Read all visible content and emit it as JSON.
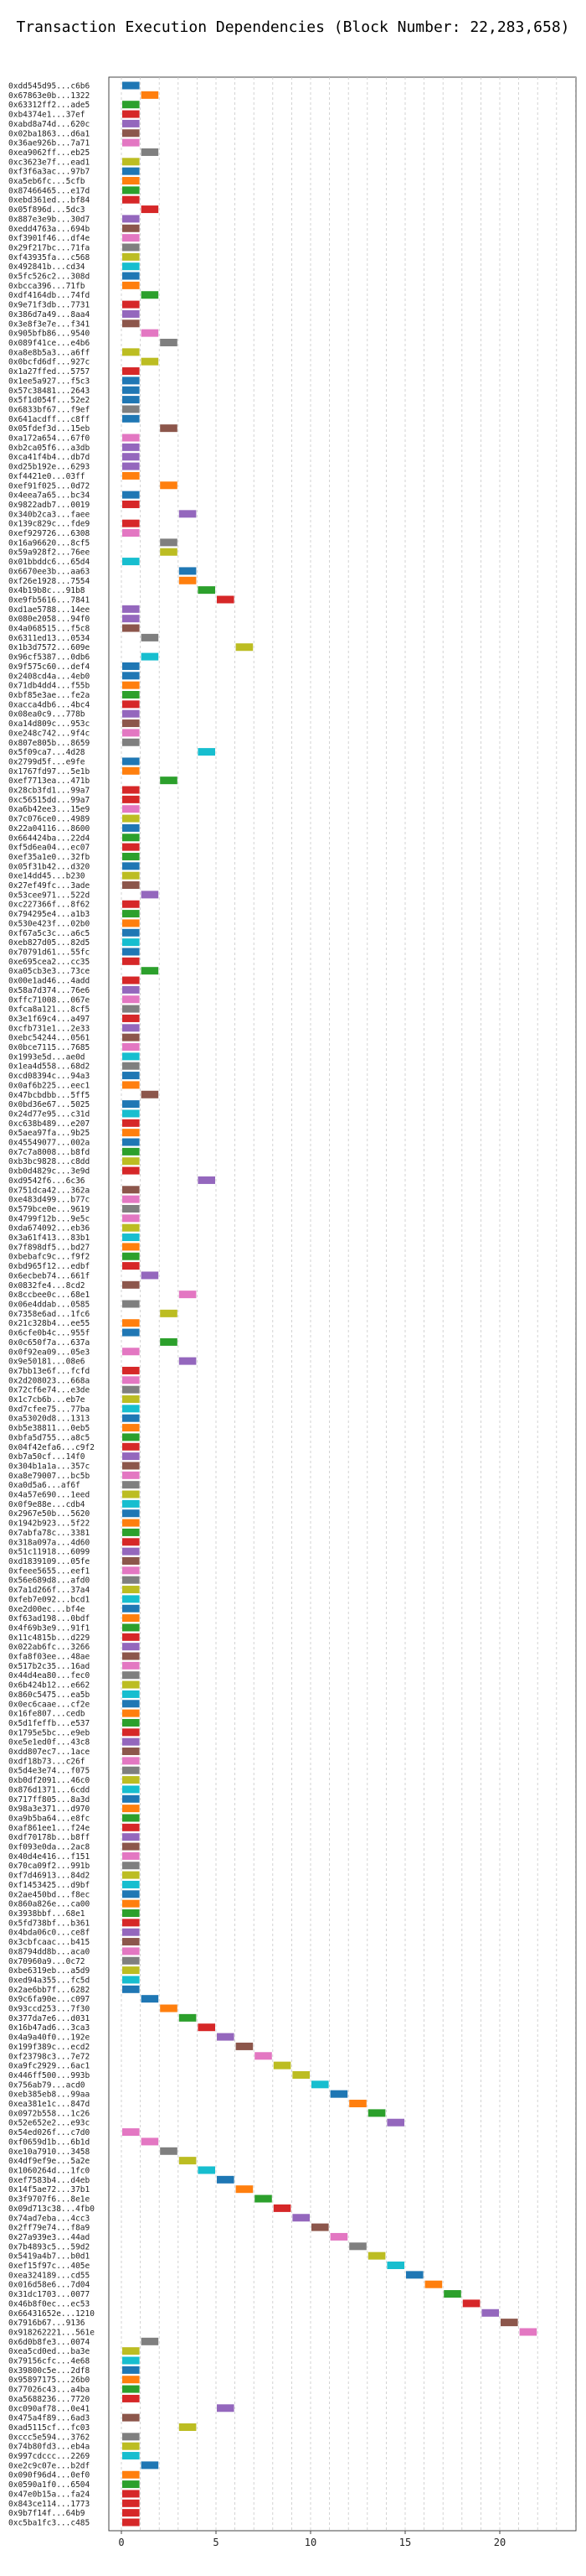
{
  "chart_data": {
    "type": "bar",
    "title": "Transaction Execution Dependencies (Block Number: 22,283,658)",
    "xlabel": "",
    "ylabel": "",
    "grid": true,
    "xlim": [
      0,
      23.5
    ],
    "xticks": [
      "0",
      "5",
      "10",
      "15",
      "20"
    ],
    "colors": [
      "#1f77b4",
      "#ff7f0e",
      "#2ca02c",
      "#d62728",
      "#9467bd",
      "#8c564b",
      "#e377c2",
      "#7f7f7f",
      "#bcbd22",
      "#17becf"
    ],
    "transactions": [
      "0xdd545d95...c6b6",
      "0x67863e0b...1322",
      "0x63312ff2...ade5",
      "0xb4374e1...37ef",
      "0xabd8a74d...620c",
      "0x02ba1863...d6a1",
      "0x36ae926b...7a71",
      "0xea9062ff...eb25",
      "0xc3623e7f...ead1",
      "0xf3f6a3ac...97b7",
      "0xa5eb6fc...5cfb",
      "0x87466465...e17d",
      "0xebd361ed...bf84",
      "0x05f896d...5dc3",
      "0x887e3e9b...30d7",
      "0xedd4763a...694b",
      "0xf3901f46...df4e",
      "0x29f217bc...71fa",
      "0xf43935fa...c568",
      "0x492841b...cd34",
      "0x5fc526c2...308d",
      "0xbcca396...71fb",
      "0xdf4164db...74fd",
      "0x9e71f3db...7731",
      "0x386d7a49...8aa4",
      "0x3e8f3e7e...f341",
      "0x905bfb86...9540",
      "0x089f41ce...e4b6",
      "0xa8e8b5a3...a6ff",
      "0x0bcfd6df...927c",
      "0x1a27ffed...5757",
      "0x1ee5a927...f5c3",
      "0x57c38481...2643",
      "0x5f1d054f...52e2",
      "0x6833bf67...f9ef",
      "0x641acdff...c8ff",
      "0x05fdef3d...15eb",
      "0xa172a654...67f0",
      "0xb2ca05f6...a3db",
      "0xca41f4b4...db7d",
      "0xd25b192e...6293",
      "0xf4421e0...03ff",
      "0xef91f025...0d72",
      "0x4eea7a65...bc34",
      "0x9822adb7...0019",
      "0x340b2ca3...faee",
      "0x139c829c...fde9",
      "0xef929726...6308",
      "0x16a96620...8cf5",
      "0x59a928f2...76ee",
      "0x01bbddc6...65d4",
      "0x6670ee3b...aa63",
      "0xf26e1928...7554",
      "0x4b19b8c...91b8",
      "0xe9fb5616...7841",
      "0xd1ae5788...14ee",
      "0x080e2058...94f0",
      "0x4a068515...f5c8",
      "0x6311ed13...0534",
      "0x1b3d7572...609e",
      "0x96cf5387...0db6",
      "0x9f575c60...def4",
      "0x2408cd4a...4eb0",
      "0x71db4dd4...f55b",
      "0xbf85e3ae...fe2a",
      "0xacca4db6...4bc4",
      "0x08ea0c9...778b",
      "0xa14d809c...953c",
      "0xe248c742...9f4c",
      "0x807e805b...8659",
      "0x5f09ca7...4d28",
      "0x2799d5f...e9fe",
      "0x1767fd97...5e1b",
      "0xef7713ea...471b",
      "0x28cb3fd1...99a7",
      "0xc56515dd...99a7",
      "0xa6b42ee3...15e9",
      "0x7c076ce0...4989",
      "0x22a04116...8600",
      "0x664424ba...22d4",
      "0xf5d6ea04...ec07",
      "0xef35a1e0...32fb",
      "0x05f31b42...d320",
      "0xe14dd45...b230",
      "0x27ef49fc...3ade",
      "0x53cee971...522d",
      "0xc227366f...8f62",
      "0x794295e4...a1b3",
      "0x530e423f...02b0",
      "0xf67a5c3c...a6c5",
      "0xeb827d05...82d5",
      "0x70791d61...55fc",
      "0xe695cea2...cc35",
      "0xa05cb3e3...73ce",
      "0x00e1ad46...4add",
      "0x58a7d374...76e6",
      "0xffc71008...067e",
      "0xfca8a121...8cf5",
      "0x3e1f69c4...a497",
      "0xcfb731e1...2e33",
      "0xebc54244...0561",
      "0x0bce7115...7685",
      "0x1993e5d...ae0d",
      "0x1ea4d558...68d2",
      "0xcd08394c...94a3",
      "0x0af6b225...eec1",
      "0x47bcbdbb...5ff5",
      "0x0bd36e67...5025",
      "0x24d77e95...c31d",
      "0xc638b489...e207",
      "0x5aea97fa...9b25",
      "0x45549077...002a",
      "0x7c7a8008...b8fd",
      "0xb3bc9828...c8dd",
      "0xb0d4829c...3e9d",
      "0xd9542f6...6c36",
      "0x751dca42...362a",
      "0xe483d499...b77c",
      "0x579bce0e...9619",
      "0x4799f12b...9e5c",
      "0xda674092...eb36",
      "0x3a61f413...83b1",
      "0x7f898df5...bd27",
      "0xbebafc9c...f9f2",
      "0xbd965f12...edbf",
      "0x6ecbeb74...661f",
      "0x0832fe4...8cd2",
      "0x8ccbee0c...68e1",
      "0x06e4ddab...0585",
      "0x7358e6ad...1fc6",
      "0x21c328b4...ee55",
      "0x6cfe0b4c...955f",
      "0x0c650f7a...637a",
      "0x0f92ea09...05e3",
      "0x9e50181...08e6",
      "0x7bb13e6f...fcfd",
      "0x2d208023...668a",
      "0x72cf6e74...e3de",
      "0x1c7cb6b...eb7e",
      "0xd7cfee75...77ba",
      "0xa53020d8...1313",
      "0xb5e38811...0eb5",
      "0xbfa5d755...a8c5",
      "0x04f42efa6...c9f2",
      "0xb7a50cf...14f0",
      "0x304b1a1a...357c",
      "0xa8e79007...bc5b",
      "0xa0d5a6...af6f",
      "0x4a57e690...1eed",
      "0x0f9e88e...cdb4",
      "0x2967e50b...5620",
      "0x1942b923...5f22",
      "0x7abfa78c...3381",
      "0x318a097a...4d60",
      "0x51c11918...6099",
      "0xd1839109...05fe",
      "0xfeee5655...eef1",
      "0x56e689d8...afd0",
      "0x7a1d266f...37a4",
      "0xfeb7e092...bcd1",
      "0xe2d00ec...bf4e",
      "0xf63ad198...0bdf",
      "0x4f69b3e9...91f1",
      "0x11c4815b...d229",
      "0x022ab6fc...3266",
      "0xfa8f03ee...48ae",
      "0x517b2c35...16ad",
      "0x44d4ea80...fec0",
      "0x6b424b12...e662",
      "0x860c5475...ea5b",
      "0x0ec6caae...cf2e",
      "0x16fe807...cedb",
      "0x5d1feffb...e537",
      "0x1795e5bc...e9eb",
      "0xe5e1ed0f...43c8",
      "0xdd807ec7...1ace",
      "0xdf18b73...c26f",
      "0x5d4e3e74...f075",
      "0xb0df2091...46c0",
      "0x876d1371...6cdd",
      "0x717ff805...8a3d",
      "0x98a3e371...d970",
      "0xa9b5ba64...e8fc",
      "0xaf861ee1...f24e",
      "0xdf70178b...b8ff",
      "0xf093e0da...2ac8",
      "0x40d4e416...f151",
      "0x70ca09f2...991b",
      "0xf7d46913...84d2",
      "0xf1453425...d9bf",
      "0x2ae450bd...f8ec",
      "0x860a826e...ca00",
      "0x3938bbf...68e1",
      "0x5fd738bf...b361",
      "0x4bda06c0...ce8f",
      "0x3cbfcaac...b415",
      "0x8794dd8b...aca0",
      "0x70960a9...0c72",
      "0xbe6319eb...a5d9",
      "0xed94a355...fc5d",
      "0x2ae6bb7f...6282",
      "0x9c6fa90e...c097",
      "0x93ccd253...7f30",
      "0x377da7e6...d031",
      "0x16b47ad6...3ca3",
      "0x4a9a40f0...192e",
      "0x199f389c...ecd2",
      "0xf23798c3...7e72",
      "0xa9fc2929...6ac1",
      "0x446ff500...993b",
      "0x756ab79...acd0",
      "0xeb385eb8...99aa",
      "0xea381e1c...847d",
      "0x0972b558...1c26",
      "0x52e652e2...e93c",
      "0x54ed026f...c7d0",
      "0xf0659d1b...6b1d",
      "0xe10a7910...3458",
      "0x4df9ef9e...5a2e",
      "0x1060264d...1fc0",
      "0xef7583b4...d4eb",
      "0x14f5ae72...37b1",
      "0x3f9707f6...8e1e",
      "0x09d713c38...4fb0",
      "0x74ad7eba...4cc3",
      "0x2ff79e74...f8a9",
      "0x27a939e3...44ad",
      "0x7b4893c5...59d2",
      "0x5419a4b7...b0d1",
      "0xef15f97c...405e",
      "0xea324189...cd55",
      "0x016d58e6...7d04",
      "0x31dc1703...0077",
      "0x46b8f0ec...ec53",
      "0x66431652e...1210",
      "0x7916b67...9136",
      "0x918262221...561e",
      "0x6d0b8fe3...0074",
      "0xea5cd0ed...ba3e",
      "0x79156cfc...4e68",
      "0x39800c5e...2df8",
      "0x95897175...26b0",
      "0x77026c43...a4ba",
      "0xa5688236...7720",
      "0xc090af78...0e41",
      "0x475a4f89...6ad3",
      "0xad5115cf...fc03",
      "0xccc5e594...3762",
      "0x74b80fd3...eb4a",
      "0x997cdccc...2269",
      "0xe2c9c07e...b2df",
      "0x090f96d4...0ef0",
      "0x0590a1f0...6504",
      "0x47e0b15a...fa24",
      "0x843ce114...1773",
      "0x9b7f14f...64b9",
      "0xc5ba1fc3...c485"
    ],
    "bars": [
      [
        0,
        0
      ],
      [
        1,
        1
      ],
      [
        0,
        2
      ],
      [
        0,
        3
      ],
      [
        0,
        4
      ],
      [
        0,
        5
      ],
      [
        0,
        6
      ],
      [
        1,
        7
      ],
      [
        0,
        8
      ],
      [
        0,
        0
      ],
      [
        0,
        1
      ],
      [
        0,
        2
      ],
      [
        0,
        3
      ],
      [
        1,
        3
      ],
      [
        0,
        4
      ],
      [
        0,
        5
      ],
      [
        0,
        6
      ],
      [
        0,
        7
      ],
      [
        0,
        8
      ],
      [
        0,
        9
      ],
      [
        0,
        0
      ],
      [
        0,
        1
      ],
      [
        1,
        2
      ],
      [
        0,
        3
      ],
      [
        0,
        4
      ],
      [
        0,
        5
      ],
      [
        1,
        6
      ],
      [
        2,
        7
      ],
      [
        0,
        8
      ],
      [
        1,
        8
      ],
      [
        0,
        3
      ],
      [
        0,
        0
      ],
      [
        0,
        0
      ],
      [
        0,
        0
      ],
      [
        0,
        7
      ],
      [
        0,
        0
      ],
      [
        2,
        5
      ],
      [
        0,
        6
      ],
      [
        0,
        4
      ],
      [
        0,
        4
      ],
      [
        0,
        4
      ],
      [
        0,
        1
      ],
      [
        2,
        1
      ],
      [
        0,
        0
      ],
      [
        0,
        3
      ],
      [
        3,
        4
      ],
      [
        0,
        3
      ],
      [
        0,
        6
      ],
      [
        2,
        7
      ],
      [
        2,
        8
      ],
      [
        0,
        9
      ],
      [
        3,
        0
      ],
      [
        3,
        1
      ],
      [
        4,
        2
      ],
      [
        5,
        3
      ],
      [
        0,
        4
      ],
      [
        0,
        4
      ],
      [
        0,
        5
      ],
      [
        1,
        7
      ],
      [
        6,
        8
      ],
      [
        1,
        9
      ],
      [
        0,
        0
      ],
      [
        0,
        0
      ],
      [
        0,
        1
      ],
      [
        0,
        2
      ],
      [
        0,
        3
      ],
      [
        0,
        4
      ],
      [
        0,
        5
      ],
      [
        0,
        6
      ],
      [
        0,
        7
      ],
      [
        4,
        9
      ],
      [
        0,
        0
      ],
      [
        0,
        1
      ],
      [
        2,
        2
      ],
      [
        0,
        3
      ],
      [
        0,
        3
      ],
      [
        0,
        6
      ],
      [
        0,
        8
      ],
      [
        0,
        0
      ],
      [
        0,
        2
      ],
      [
        0,
        3
      ],
      [
        0,
        2
      ],
      [
        0,
        0
      ],
      [
        0,
        8
      ],
      [
        0,
        5
      ],
      [
        1,
        4
      ],
      [
        0,
        3
      ],
      [
        0,
        2
      ],
      [
        0,
        1
      ],
      [
        0,
        0
      ],
      [
        0,
        9
      ],
      [
        0,
        0
      ],
      [
        0,
        3
      ],
      [
        1,
        2
      ],
      [
        0,
        3
      ],
      [
        0,
        4
      ],
      [
        0,
        6
      ],
      [
        0,
        7
      ],
      [
        0,
        3
      ],
      [
        0,
        4
      ],
      [
        0,
        5
      ],
      [
        0,
        6
      ],
      [
        0,
        9
      ],
      [
        0,
        7
      ],
      [
        0,
        0
      ],
      [
        0,
        1
      ],
      [
        1,
        5
      ],
      [
        0,
        0
      ],
      [
        0,
        9
      ],
      [
        0,
        3
      ],
      [
        0,
        1
      ],
      [
        0,
        0
      ],
      [
        0,
        2
      ],
      [
        0,
        8
      ],
      [
        0,
        3
      ],
      [
        4,
        4
      ],
      [
        0,
        5
      ],
      [
        0,
        6
      ],
      [
        0,
        7
      ],
      [
        0,
        6
      ],
      [
        0,
        8
      ],
      [
        0,
        9
      ],
      [
        0,
        1
      ],
      [
        0,
        2
      ],
      [
        0,
        3
      ],
      [
        1,
        4
      ],
      [
        0,
        5
      ],
      [
        3,
        6
      ],
      [
        0,
        7
      ],
      [
        2,
        8
      ],
      [
        0,
        1
      ],
      [
        0,
        0
      ],
      [
        2,
        2
      ],
      [
        0,
        6
      ],
      [
        3,
        4
      ],
      [
        0,
        3
      ],
      [
        0,
        6
      ],
      [
        0,
        7
      ],
      [
        0,
        8
      ],
      [
        0,
        9
      ],
      [
        0,
        0
      ],
      [
        0,
        1
      ],
      [
        0,
        2
      ],
      [
        0,
        3
      ],
      [
        0,
        4
      ],
      [
        0,
        5
      ],
      [
        0,
        6
      ],
      [
        0,
        7
      ],
      [
        0,
        8
      ],
      [
        0,
        9
      ],
      [
        0,
        0
      ],
      [
        0,
        1
      ],
      [
        0,
        2
      ],
      [
        0,
        3
      ],
      [
        0,
        4
      ],
      [
        0,
        5
      ],
      [
        0,
        6
      ],
      [
        0,
        7
      ],
      [
        0,
        8
      ],
      [
        0,
        9
      ],
      [
        0,
        0
      ],
      [
        0,
        1
      ],
      [
        0,
        2
      ],
      [
        0,
        3
      ],
      [
        0,
        4
      ],
      [
        0,
        5
      ],
      [
        0,
        6
      ],
      [
        0,
        7
      ],
      [
        0,
        8
      ],
      [
        0,
        9
      ],
      [
        0,
        0
      ],
      [
        0,
        1
      ],
      [
        0,
        2
      ],
      [
        0,
        3
      ],
      [
        0,
        4
      ],
      [
        0,
        5
      ],
      [
        0,
        6
      ],
      [
        0,
        7
      ],
      [
        0,
        8
      ],
      [
        0,
        9
      ],
      [
        0,
        0
      ],
      [
        0,
        1
      ],
      [
        0,
        2
      ],
      [
        0,
        3
      ],
      [
        0,
        4
      ],
      [
        0,
        5
      ],
      [
        0,
        6
      ],
      [
        0,
        7
      ],
      [
        0,
        8
      ],
      [
        0,
        9
      ],
      [
        0,
        0
      ],
      [
        0,
        1
      ],
      [
        0,
        2
      ],
      [
        0,
        3
      ],
      [
        0,
        4
      ],
      [
        0,
        5
      ],
      [
        0,
        6
      ],
      [
        0,
        7
      ],
      [
        0,
        8
      ],
      [
        0,
        9
      ],
      [
        0,
        0
      ],
      [
        1,
        0
      ],
      [
        2,
        1
      ],
      [
        3,
        2
      ],
      [
        4,
        3
      ],
      [
        5,
        4
      ],
      [
        6,
        5
      ],
      [
        7,
        6
      ],
      [
        8,
        8
      ],
      [
        9,
        8
      ],
      [
        10,
        9
      ],
      [
        11,
        0
      ],
      [
        12,
        1
      ],
      [
        13,
        2
      ],
      [
        14,
        4
      ],
      [
        0,
        6
      ],
      [
        1,
        6
      ],
      [
        2,
        7
      ],
      [
        3,
        8
      ],
      [
        4,
        9
      ],
      [
        5,
        0
      ],
      [
        6,
        1
      ],
      [
        7,
        2
      ],
      [
        8,
        3
      ],
      [
        9,
        4
      ],
      [
        10,
        5
      ],
      [
        11,
        6
      ],
      [
        12,
        7
      ],
      [
        13,
        8
      ],
      [
        14,
        9
      ],
      [
        15,
        0
      ],
      [
        16,
        1
      ],
      [
        17,
        2
      ],
      [
        18,
        3
      ],
      [
        19,
        4
      ],
      [
        20,
        5
      ],
      [
        21,
        6
      ],
      [
        1,
        7
      ],
      [
        0,
        8
      ],
      [
        0,
        9
      ],
      [
        0,
        0
      ],
      [
        0,
        1
      ],
      [
        0,
        2
      ],
      [
        0,
        3
      ],
      [
        5,
        4
      ],
      [
        0,
        5
      ],
      [
        3,
        8
      ],
      [
        0,
        7
      ],
      [
        0,
        8
      ],
      [
        0,
        9
      ],
      [
        1,
        0
      ],
      [
        0,
        1
      ],
      [
        0,
        2
      ],
      [
        0,
        3
      ],
      [
        0,
        3
      ],
      [
        0,
        3
      ],
      [
        0,
        3
      ]
    ]
  }
}
